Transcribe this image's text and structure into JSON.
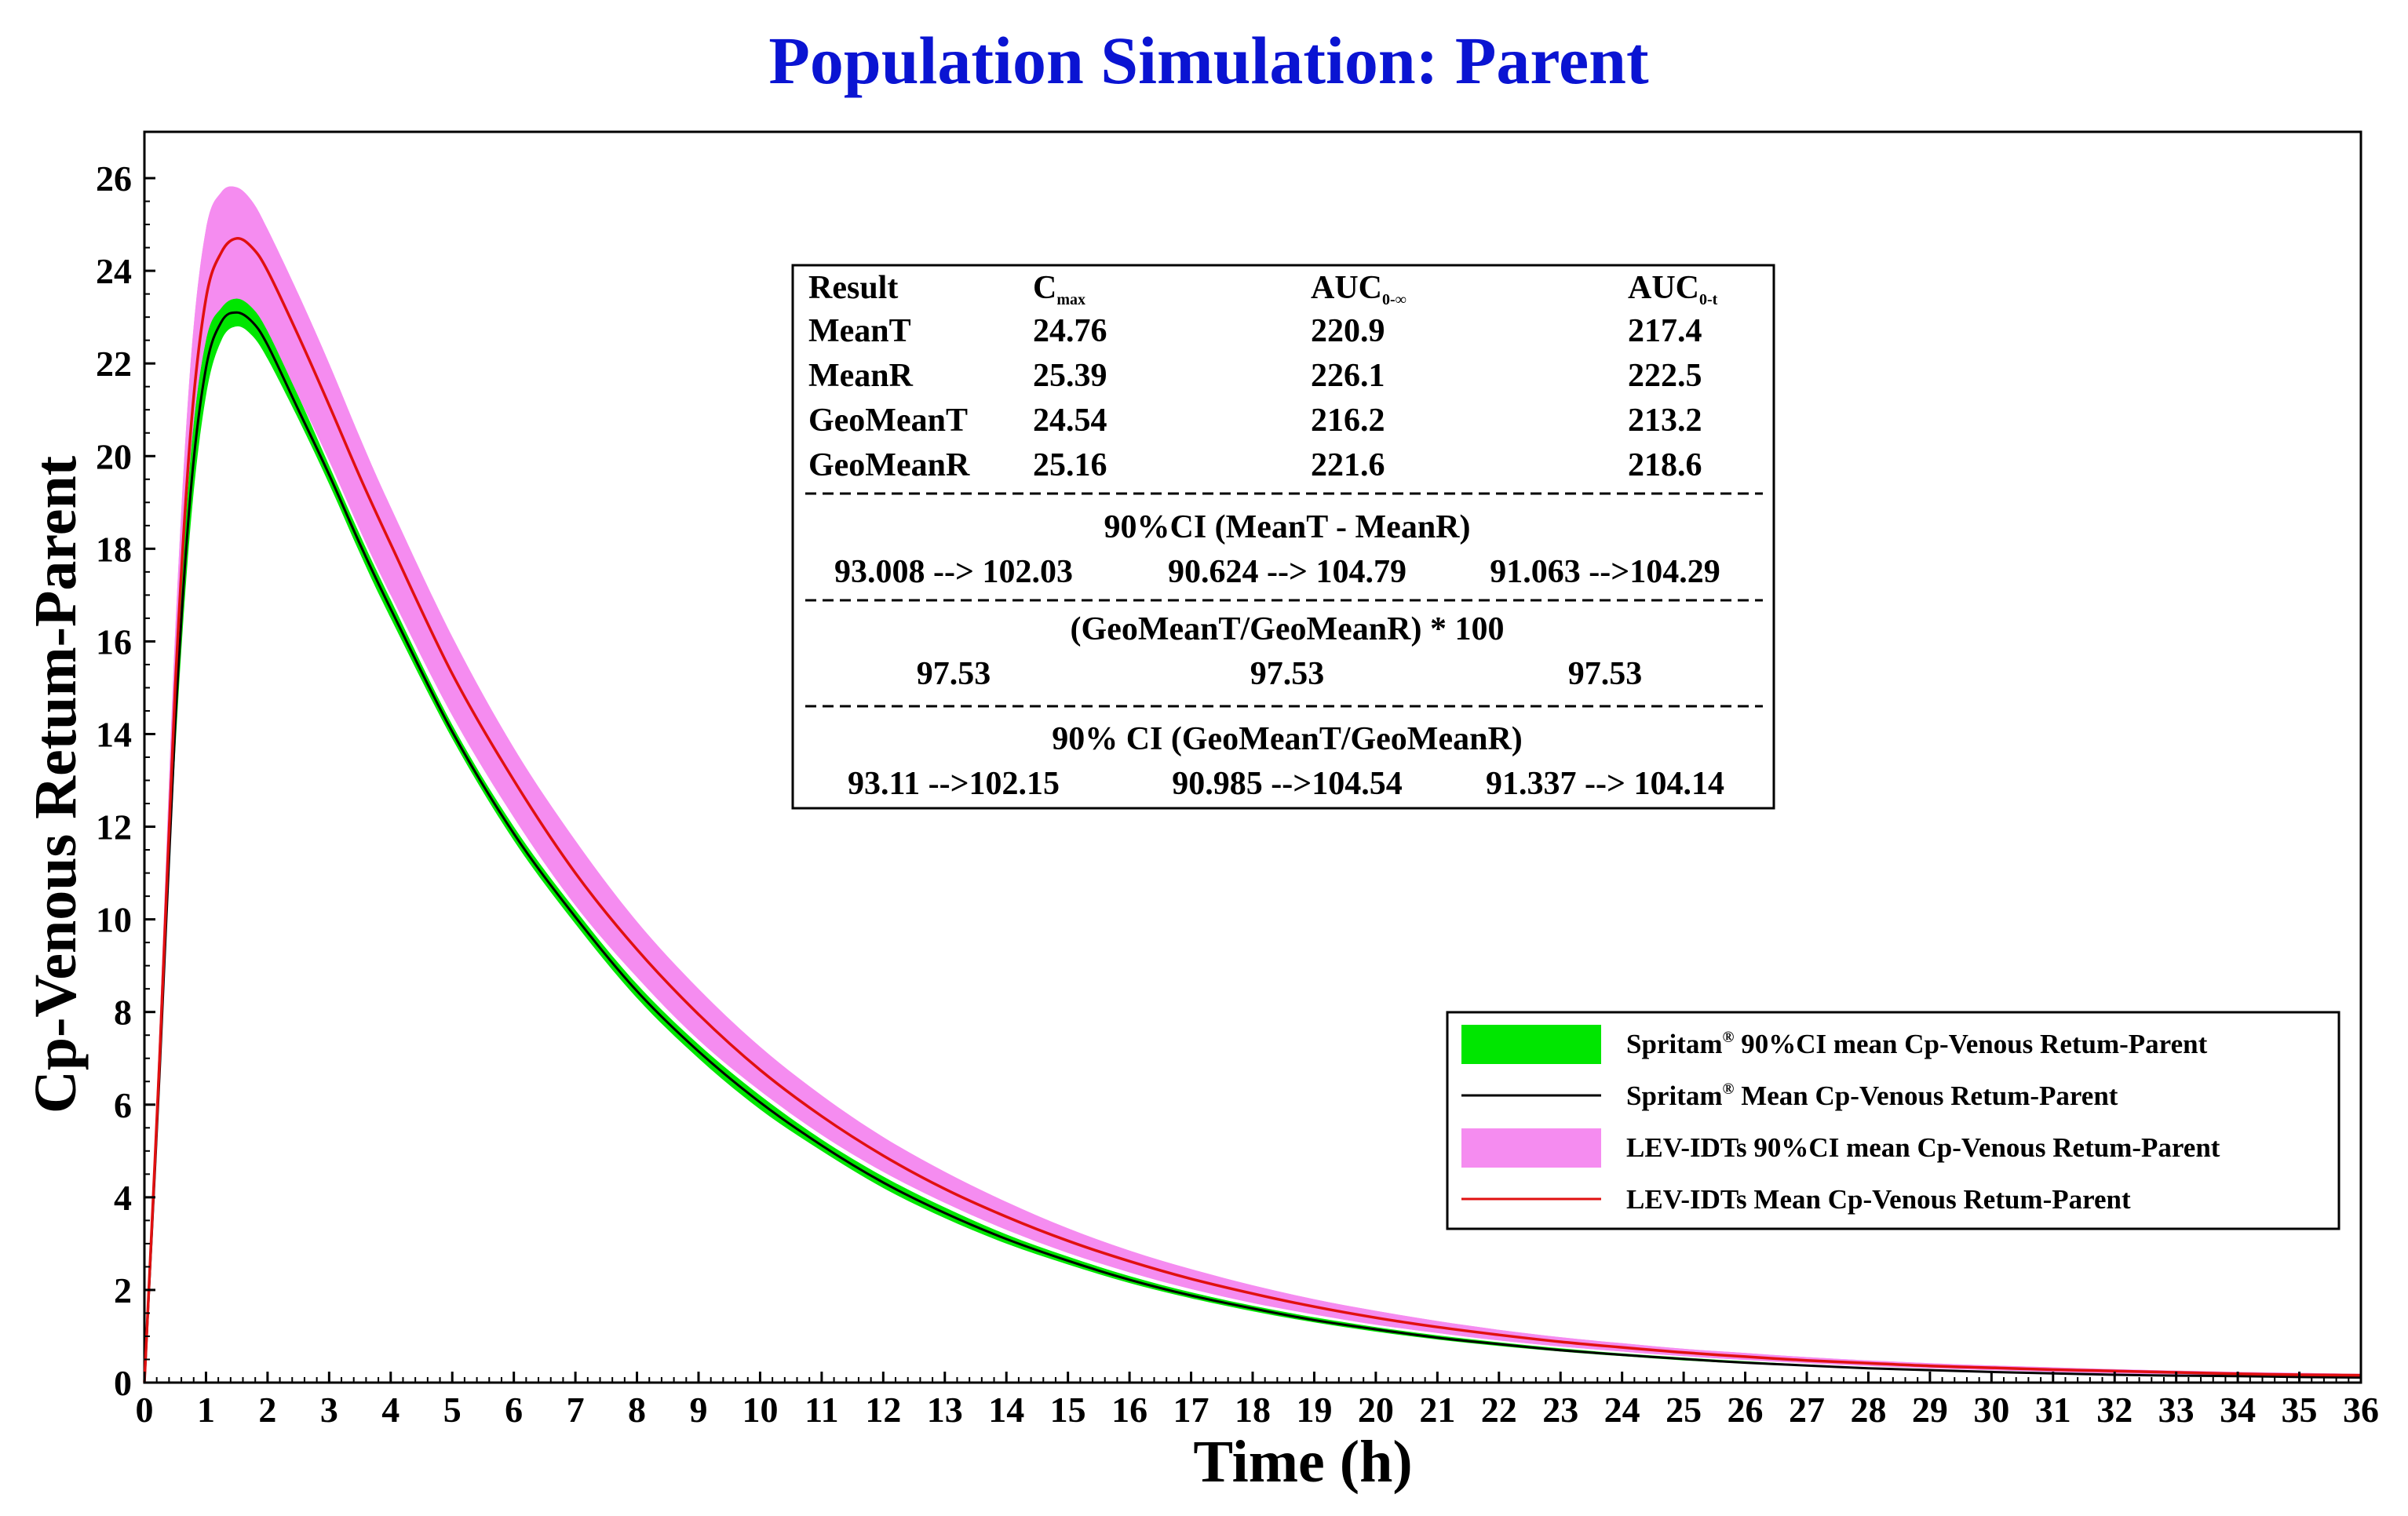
{
  "chart_data": {
    "type": "line",
    "title": "Population Simulation: Parent",
    "xlabel": "Time (h)",
    "ylabel": "Cp-Venous Retum-Parent",
    "xlim": [
      0,
      36
    ],
    "ylim": [
      0,
      27
    ],
    "xticks": [
      0,
      1,
      2,
      3,
      4,
      5,
      6,
      7,
      8,
      9,
      10,
      11,
      12,
      13,
      14,
      15,
      16,
      17,
      18,
      19,
      20,
      21,
      22,
      23,
      24,
      25,
      26,
      27,
      28,
      29,
      30,
      31,
      32,
      33,
      34,
      35,
      36
    ],
    "yticks": [
      0,
      2,
      4,
      6,
      8,
      10,
      12,
      14,
      16,
      18,
      20,
      22,
      24,
      26
    ],
    "x": [
      0,
      0.25,
      0.5,
      0.75,
      1,
      1.25,
      1.5,
      1.75,
      2,
      2.5,
      3,
      3.5,
      4,
      5,
      6,
      7,
      8,
      9,
      10,
      11,
      12,
      13,
      14,
      15,
      16,
      17,
      18,
      19,
      20,
      21,
      22,
      23,
      24,
      25,
      26,
      27,
      28,
      29,
      30,
      31,
      32,
      33,
      34,
      35,
      36
    ],
    "series": [
      {
        "name": "Spritam® 90%CI mean Cp-Venous Retum-Parent",
        "kind": "band",
        "color": "#00e600",
        "lower": [
          0,
          6.5,
          13.6,
          18.5,
          21.3,
          22.5,
          22.8,
          22.6,
          22.1,
          20.8,
          19.4,
          17.9,
          16.5,
          13.9,
          11.7,
          9.9,
          8.3,
          7.0,
          5.9,
          5.0,
          4.2,
          3.55,
          3.0,
          2.55,
          2.15,
          1.82,
          1.54,
          1.3,
          1.1,
          0.93,
          0.79,
          0.67,
          0.57,
          0.48,
          0.41,
          0.35,
          0.3,
          0.26,
          0.22,
          0.19,
          0.17,
          0.15,
          0.13,
          0.12,
          0.11
        ],
        "upper": [
          0,
          7.2,
          14.8,
          20.0,
          22.5,
          23.2,
          23.4,
          23.2,
          22.7,
          21.3,
          19.8,
          18.3,
          16.9,
          14.2,
          12.0,
          10.2,
          8.6,
          7.3,
          6.2,
          5.25,
          4.45,
          3.78,
          3.2,
          2.72,
          2.3,
          1.95,
          1.66,
          1.41,
          1.2,
          1.02,
          0.87,
          0.74,
          0.63,
          0.54,
          0.46,
          0.39,
          0.33,
          0.28,
          0.24,
          0.21,
          0.18,
          0.16,
          0.14,
          0.13,
          0.12
        ]
      },
      {
        "name": "Spritam® Mean Cp-Venous Retum-Parent",
        "kind": "line",
        "color": "#000000",
        "values": [
          0,
          6.8,
          14.2,
          19.2,
          21.9,
          22.9,
          23.1,
          22.9,
          22.4,
          21.0,
          19.6,
          18.1,
          16.7,
          14.05,
          11.85,
          10.05,
          8.45,
          7.15,
          6.05,
          5.12,
          4.32,
          3.66,
          3.1,
          2.63,
          2.22,
          1.88,
          1.6,
          1.35,
          1.15,
          0.97,
          0.83,
          0.7,
          0.6,
          0.51,
          0.43,
          0.37,
          0.31,
          0.27,
          0.23,
          0.2,
          0.17,
          0.15,
          0.14,
          0.12,
          0.11
        ]
      },
      {
        "name": "LEV-IDTs 90%CI mean Cp-Venous Retum-Parent",
        "kind": "band",
        "color": "#f58cf0",
        "lower": [
          0,
          6.6,
          13.9,
          18.9,
          21.8,
          22.9,
          23.3,
          23.1,
          22.6,
          21.3,
          19.9,
          18.4,
          17.0,
          14.4,
          12.2,
          10.3,
          8.75,
          7.4,
          6.3,
          5.35,
          4.55,
          3.88,
          3.3,
          2.8,
          2.38,
          2.02,
          1.72,
          1.47,
          1.25,
          1.07,
          0.91,
          0.78,
          0.67,
          0.57,
          0.49,
          0.42,
          0.36,
          0.31,
          0.27,
          0.23,
          0.2,
          0.18,
          0.16,
          0.14,
          0.13
        ],
        "upper": [
          0,
          7.8,
          16.2,
          22.0,
          24.9,
          25.7,
          25.8,
          25.5,
          24.9,
          23.5,
          22.0,
          20.4,
          18.9,
          16.1,
          13.7,
          11.7,
          9.95,
          8.5,
          7.25,
          6.2,
          5.3,
          4.55,
          3.9,
          3.33,
          2.85,
          2.45,
          2.1,
          1.8,
          1.55,
          1.33,
          1.14,
          0.98,
          0.85,
          0.73,
          0.64,
          0.55,
          0.48,
          0.42,
          0.37,
          0.33,
          0.29,
          0.26,
          0.23,
          0.21,
          0.19
        ]
      },
      {
        "name": "LEV-IDTs Mean Cp-Venous Retum-Parent",
        "kind": "line",
        "color": "#e01010",
        "values": [
          0,
          7.1,
          15.0,
          20.5,
          23.4,
          24.4,
          24.7,
          24.5,
          24.0,
          22.6,
          21.1,
          19.55,
          18.1,
          15.3,
          13.0,
          11.0,
          9.35,
          7.95,
          6.75,
          5.75,
          4.9,
          4.18,
          3.58,
          3.06,
          2.62,
          2.24,
          1.92,
          1.64,
          1.4,
          1.2,
          1.03,
          0.88,
          0.76,
          0.65,
          0.56,
          0.48,
          0.42,
          0.36,
          0.32,
          0.28,
          0.25,
          0.22,
          0.19,
          0.17,
          0.16
        ]
      }
    ],
    "legend_position": "bottom-right",
    "inset_table": {
      "headers": [
        {
          "main": "Result",
          "sub": ""
        },
        {
          "main": "C",
          "sub": "max"
        },
        {
          "main": "AUC",
          "sub": "0-∞"
        },
        {
          "main": "AUC",
          "sub": "0-t"
        }
      ],
      "rows": [
        [
          "MeanT",
          "24.76",
          "220.9",
          "217.4"
        ],
        [
          "MeanR",
          "25.39",
          "226.1",
          "222.5"
        ],
        [
          "GeoMeanT",
          "24.54",
          "216.2",
          "213.2"
        ],
        [
          "GeoMeanR",
          "25.16",
          "221.6",
          "218.6"
        ]
      ],
      "sections": [
        {
          "title": "90%CI (MeanT - MeanR)",
          "values": [
            "93.008 --> 102.03",
            "90.624 --> 104.79",
            "91.063 -->104.29"
          ]
        },
        {
          "title": "(GeoMeanT/GeoMeanR) * 100",
          "values": [
            "97.53",
            "97.53",
            "97.53"
          ]
        },
        {
          "title": "90% CI (GeoMeanT/GeoMeanR)",
          "values": [
            "93.11 -->102.15",
            "90.985 -->104.54",
            "91.337 --> 104.14"
          ]
        }
      ]
    },
    "legend": [
      {
        "label": "Spritam",
        "sup": "®",
        "rest": " 90%CI mean Cp-Venous Retum-Parent"
      },
      {
        "label": "Spritam",
        "sup": "®",
        "rest": " Mean Cp-Venous Retum-Parent"
      },
      {
        "label": "LEV-IDTs 90%CI mean Cp-Venous Retum-Parent",
        "sup": "",
        "rest": ""
      },
      {
        "label": "LEV-IDTs Mean Cp-Venous Retum-Parent",
        "sup": "",
        "rest": ""
      }
    ]
  }
}
